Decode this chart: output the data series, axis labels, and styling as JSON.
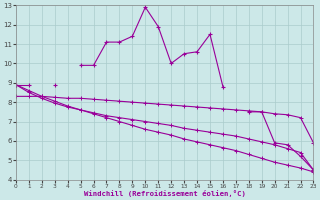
{
  "xlabel": "Windchill (Refroidissement éolien,°C)",
  "x": [
    0,
    1,
    2,
    3,
    4,
    5,
    6,
    7,
    8,
    9,
    10,
    11,
    12,
    13,
    14,
    15,
    16,
    17,
    18,
    19,
    20,
    21,
    22,
    23
  ],
  "line_jagged": [
    8.9,
    8.9,
    null,
    8.9,
    null,
    9.9,
    9.9,
    11.1,
    11.1,
    11.4,
    12.9,
    11.9,
    10.0,
    10.5,
    10.6,
    11.5,
    8.8,
    null,
    7.5,
    7.5,
    5.9,
    5.8,
    5.2,
    4.5
  ],
  "line_flat": [
    8.3,
    8.3,
    8.3,
    8.25,
    8.2,
    8.2,
    8.15,
    8.1,
    8.05,
    8.0,
    7.95,
    7.9,
    7.85,
    7.8,
    7.75,
    7.7,
    7.65,
    7.6,
    7.55,
    7.5,
    7.4,
    7.35,
    7.2,
    5.9
  ],
  "line_decline1": [
    8.9,
    8.5,
    8.2,
    7.95,
    7.75,
    7.6,
    7.45,
    7.3,
    7.2,
    7.1,
    7.0,
    6.9,
    6.8,
    6.65,
    6.55,
    6.45,
    6.35,
    6.25,
    6.1,
    5.95,
    5.8,
    5.6,
    5.4,
    4.5
  ],
  "line_decline2": [
    8.9,
    8.6,
    8.3,
    8.05,
    7.8,
    7.6,
    7.4,
    7.2,
    7.0,
    6.8,
    6.6,
    6.45,
    6.3,
    6.1,
    5.95,
    5.8,
    5.65,
    5.5,
    5.3,
    5.1,
    4.9,
    4.75,
    4.6,
    4.4
  ],
  "color": "#990099",
  "bg_color": "#cce8e8",
  "grid_color": "#aacccc",
  "ylim": [
    4,
    13
  ],
  "xlim": [
    0,
    23
  ]
}
